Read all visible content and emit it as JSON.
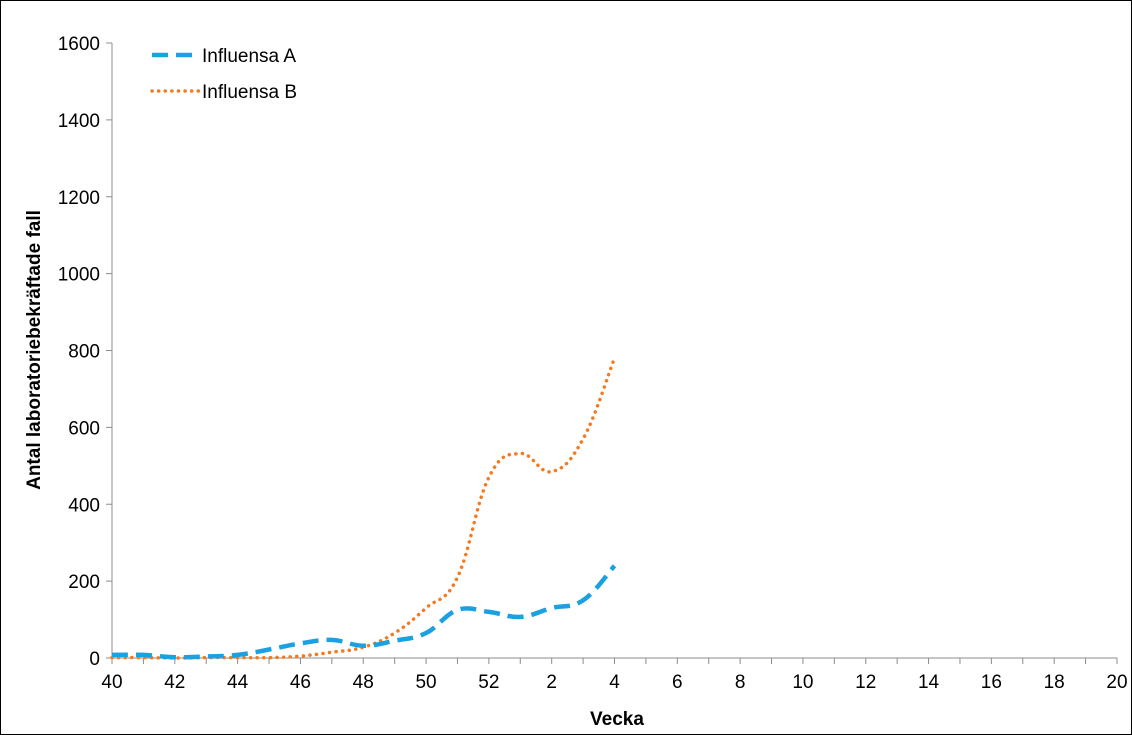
{
  "chart_data": {
    "type": "line",
    "xlabel": "Vecka",
    "ylabel": "Antal laboratoriebekräftade fall",
    "ylim": [
      0,
      1600
    ],
    "yticks": [
      0,
      200,
      400,
      600,
      800,
      1000,
      1200,
      1400,
      1600
    ],
    "weeks": [
      "40",
      "41",
      "42",
      "43",
      "44",
      "45",
      "46",
      "47",
      "48",
      "49",
      "50",
      "51",
      "52",
      "1",
      "2",
      "3",
      "4",
      "5",
      "6",
      "7",
      "8",
      "9",
      "10",
      "11",
      "12",
      "13",
      "14",
      "15",
      "16",
      "17",
      "18",
      "19",
      "20"
    ],
    "x_tick_labels": [
      "40",
      "42",
      "44",
      "46",
      "48",
      "50",
      "52",
      "2",
      "4",
      "6",
      "8",
      "10",
      "12",
      "14",
      "16",
      "18",
      "20"
    ],
    "grid": false,
    "legend_position": "top-left",
    "series": [
      {
        "name": "Influensa A",
        "color": "#1BA1E2",
        "style": "dashed",
        "values": [
          8,
          8,
          2,
          4,
          8,
          22,
          38,
          47,
          32,
          45,
          65,
          125,
          120,
          107,
          130,
          150,
          240
        ]
      },
      {
        "name": "Influensa B",
        "color": "#F47A20",
        "style": "dotted",
        "values": [
          1,
          1,
          0,
          1,
          1,
          1,
          5,
          15,
          28,
          65,
          130,
          210,
          470,
          532,
          485,
          570,
          780
        ]
      }
    ]
  }
}
